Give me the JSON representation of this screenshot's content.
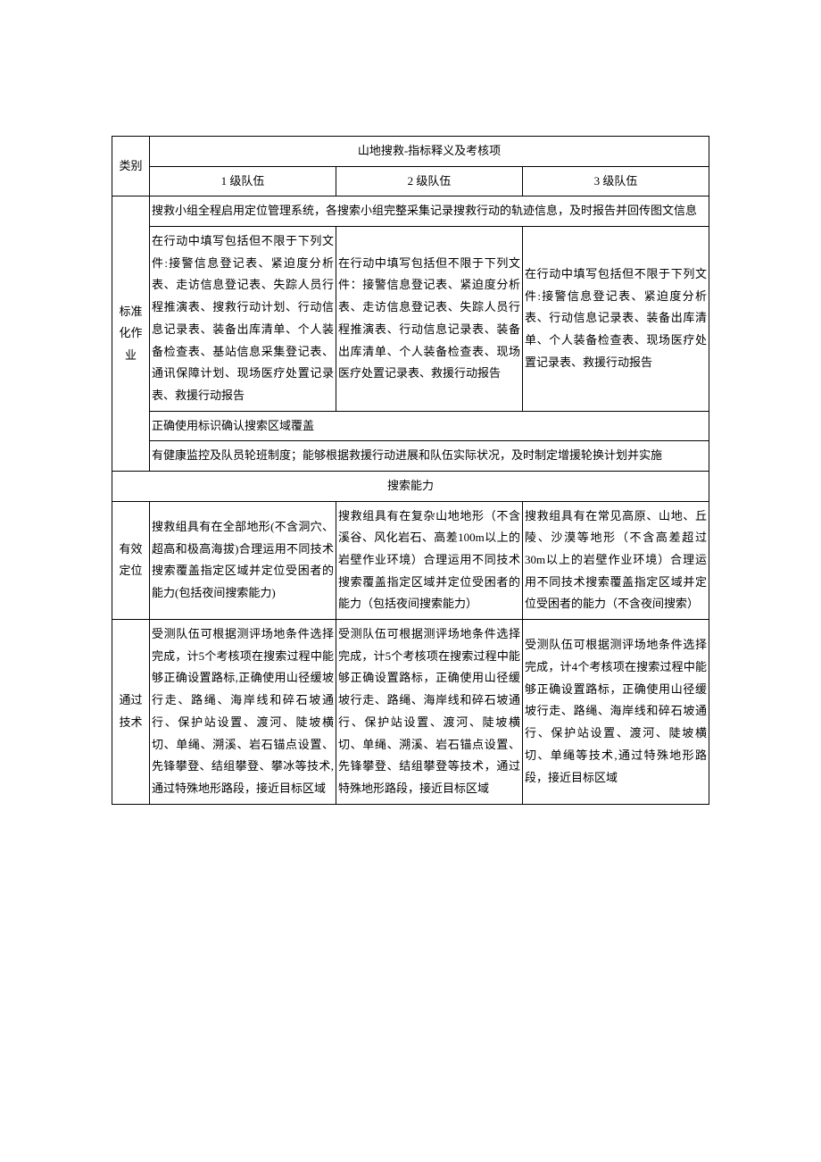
{
  "header": {
    "category": "类别",
    "main": "山地搜救-指标释义及考核项",
    "level1": "1 级队伍",
    "level2": "2 级队伍",
    "level3": "3 级队伍"
  },
  "std_ops": {
    "label": "标准化作业",
    "row1": "搜救小组全程启用定位管理系统，各搜索小组完整采集记录搜救行动的轨迹信息，及时报告并回传图文信息",
    "row2_l1": "在行动中填写包括但不限于下列文件:接警信息登记表、紧迫度分析表、走访信息登记表、失踪人员行程推演表、搜救行动计划、行动信息记录表、装备出库清单、个人装备检查表、基站信息采集登记表、通讯保障计划、现场医疗处置记录表、救援行动报告",
    "row2_l2": "在行动中填写包括但不限于下列文件：接警信息登记表、紧迫度分析表、走访信息登记表、失踪人员行程推演表、行动信息记录表、装备出库清单、个人装备检查表、现场医疗处置记录表、救援行动报告",
    "row2_l3": "在行动中填写包括但不限于下列文件:接警信息登记表、紧迫度分析表、行动信息记录表、装备出库清单、个人装备检查表、现场医疗处置记录表、救援行动报告",
    "row3": "正确使用标识确认搜索区域覆盖",
    "row4": "有健康监控及队员轮班制度；能够根据救援行动进展和队伍实际状况，及时制定增援轮换计划并实施"
  },
  "search_section": "搜索能力",
  "effective_loc": {
    "label": "有效定位",
    "l1": "搜救组具有在全部地形(不含洞穴、超高和极高海拔)合理运用不同技术搜索覆盖指定区域并定位受困者的能力(包括夜间搜索能力)",
    "l2": "搜救组具有在复杂山地地形（不含溪谷、风化岩石、高差100m以上的岩壁作业环境）合理运用不同技术搜索覆盖指定区域并定位受困者的能力（包括夜间搜索能力）",
    "l3": "搜救组具有在常见高原、山地、丘陵、沙漠等地形（不含高差超过30m以上的岩壁作业环境）合理运用不同技术搜索覆盖指定区域并定位受困者的能力（不含夜间搜索）"
  },
  "pass_tech": {
    "label": "通过技术",
    "l1": "受测队伍可根据测评场地条件选择完成，计5个考核项在搜索过程中能够正确设置路标,正确使用山径缓坡行走、路绳、海岸线和碎石坡通行、保护站设置、渡河、陡坡横切、单绳、溯溪、岩石锚点设置、先锋攀登、结组攀登、攀冰等技术,通过特殊地形路段，接近目标区域",
    "l2": "受测队伍可根据测评场地条件选择完成，计5个考核项在搜索过程中能够正确设置路标，正确使用山径缓坡行走、路绳、海岸线和碎石坡通行、保护站设置、渡河、陡坡横切、单绳、溯溪、岩石锚点设置、先锋攀登、结组攀登等技术，通过特殊地形路段，接近目标区域",
    "l3": "受测队伍可根据测评场地条件选择完成，计4个考核项在搜索过程中能够正确设置路标，正确使用山径缓坡行走、路绳、海岸线和碎石坡通行、保护站设置、渡河、陡坡横切、单绳等技术,通过特殊地形路段，接近目标区域"
  }
}
